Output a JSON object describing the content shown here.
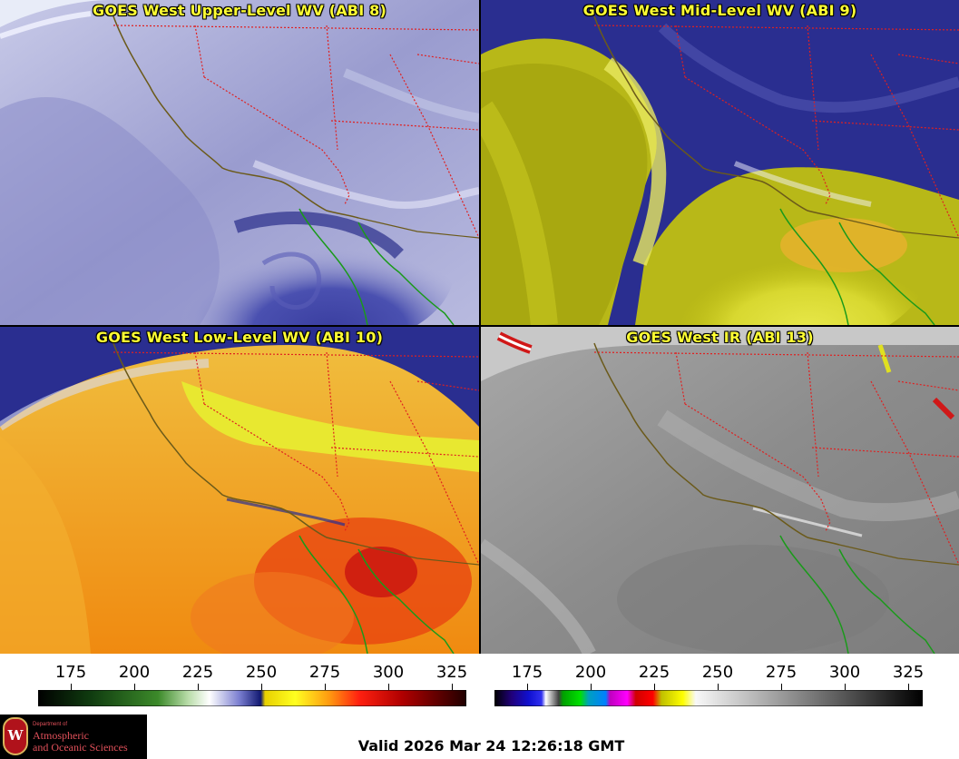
{
  "panels": [
    {
      "title": "GOES West Upper-Level WV (ABI 8)",
      "palette": "wv",
      "bg": "#a8aad6"
    },
    {
      "title": "GOES West Mid-Level WV (ABI 9)",
      "palette": "wv",
      "bg": "#c8c81a"
    },
    {
      "title": "GOES West Low-Level WV (ABI 10)",
      "palette": "wv",
      "bg": "#f0a020"
    },
    {
      "title": "GOES West IR (ABI 13)",
      "palette": "ir",
      "bg": "#8a8a8a"
    }
  ],
  "colorbars": {
    "left_ticks": [
      "175",
      "200",
      "225",
      "250",
      "275",
      "300",
      "325"
    ],
    "right_ticks": [
      "175",
      "200",
      "225",
      "250",
      "275",
      "300",
      "325"
    ]
  },
  "logo": {
    "crest_letter": "W",
    "dept_line": "Department of",
    "line1": "Atmospheric",
    "line2": "and Oceanic Sciences"
  },
  "valid_text": "Valid 2026 Mar 24 12:26:18 GMT",
  "colors": {
    "title_text": "#ffff33",
    "coastline": "#6b5a1a",
    "state_border": "#e02020",
    "mexico_coast": "#1a9a1a"
  }
}
